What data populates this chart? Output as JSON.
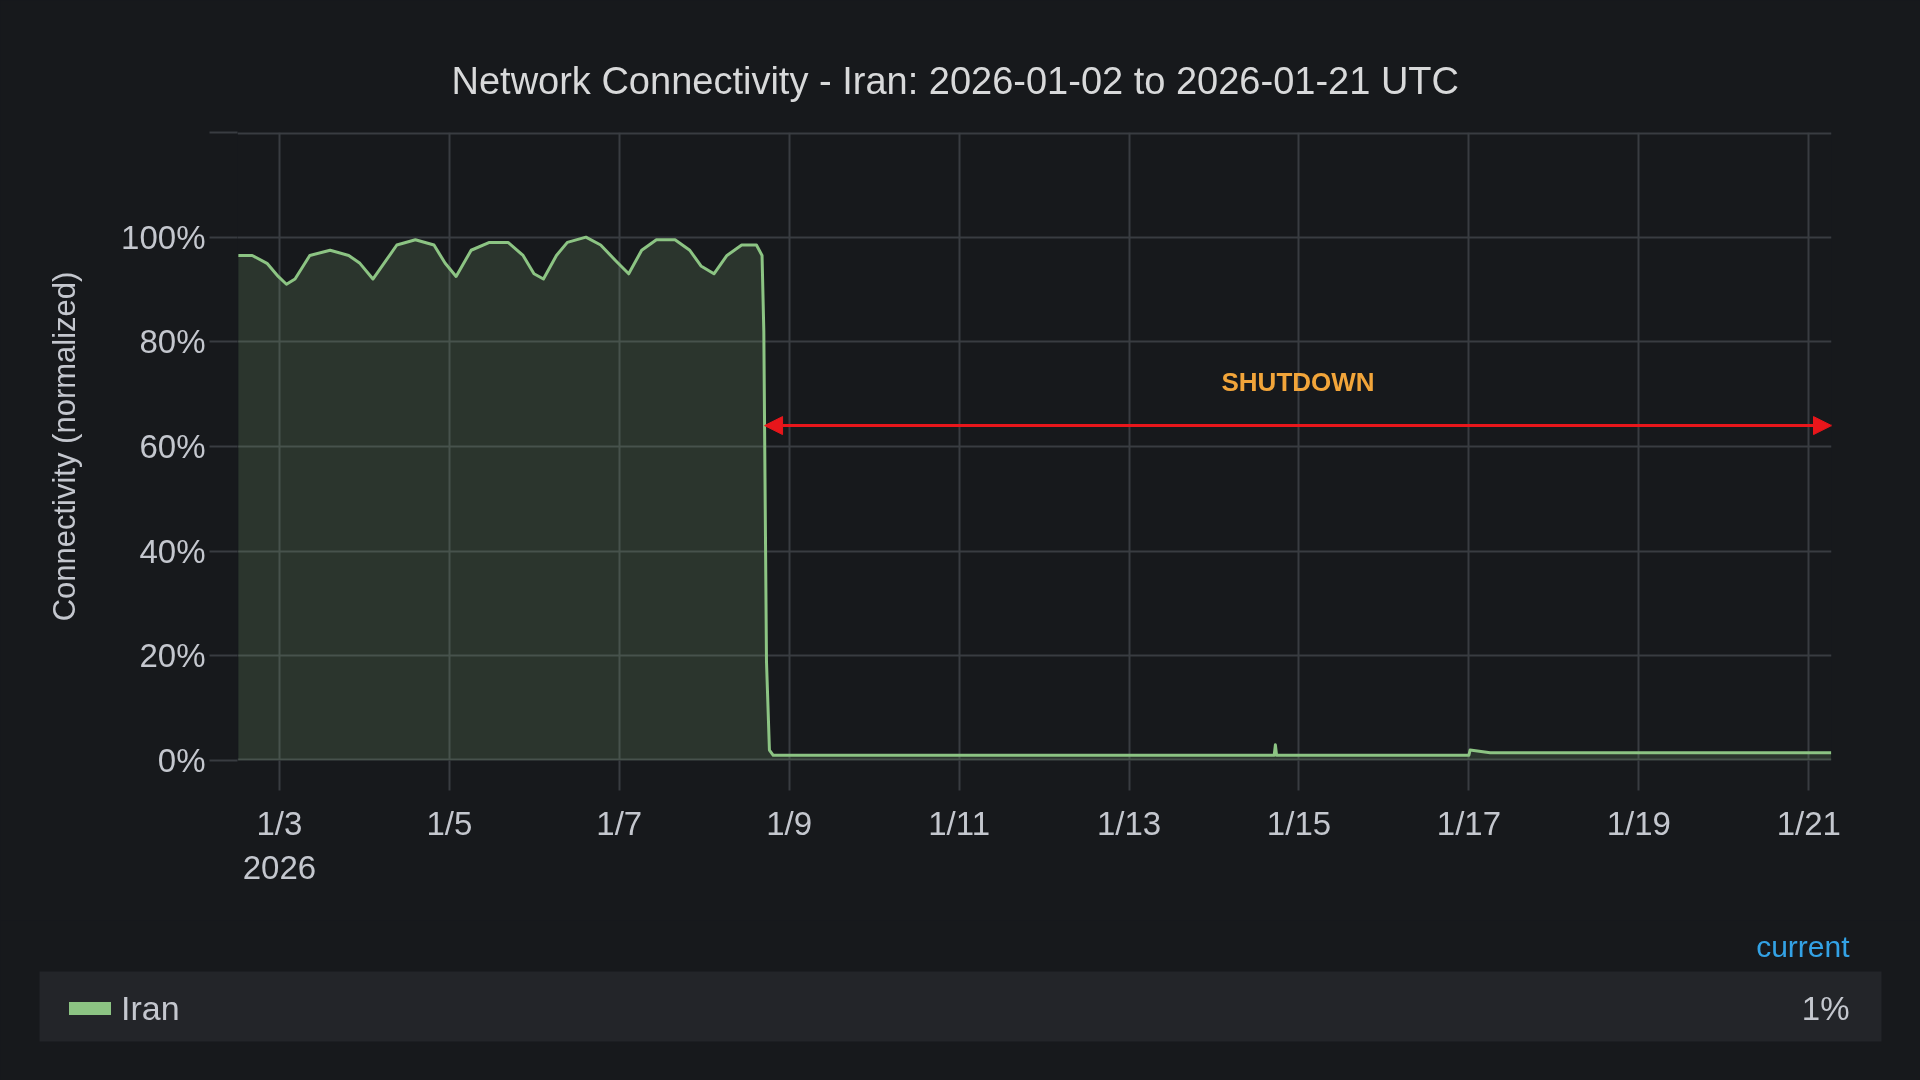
{
  "chart_data": {
    "type": "area",
    "title": "Network Connectivity - Iran: 2026-01-02 to 2026-01-21 UTC",
    "ylabel": "Connectivity (normalized)",
    "x": [
      "2026-01-02T12:25",
      "2026-01-02T16:20",
      "2026-01-02T20:30",
      "2026-01-02T23:40",
      "2026-01-03T02:00",
      "2026-01-03T04:25",
      "2026-01-03T08:35",
      "2026-01-03T14:20",
      "2026-01-03T19:35",
      "2026-01-03T22:45",
      "2026-01-04T02:25",
      "2026-01-04T06:05",
      "2026-01-04T09:10",
      "2026-01-04T14:25",
      "2026-01-04T19:40",
      "2026-01-04T22:50",
      "2026-01-05T01:55",
      "2026-01-05T06:10",
      "2026-01-05T11:20",
      "2026-01-05T16:35",
      "2026-01-05T20:50",
      "2026-01-05T23:55",
      "2026-01-06T02:35",
      "2026-01-06T06:15",
      "2026-01-06T09:20",
      "2026-01-06T14:35",
      "2026-01-06T18:45",
      "2026-01-06T23:00",
      "2026-01-07T02:40",
      "2026-01-07T06:20",
      "2026-01-07T10:30",
      "2026-01-07T15:45",
      "2026-01-07T19:55",
      "2026-01-07T23:05",
      "2026-01-08T02:45",
      "2026-01-08T06:25",
      "2026-01-08T10:35",
      "2026-01-08T14:45",
      "2026-01-08T16:20",
      "2026-01-08T16:50",
      "2026-01-08T17:10",
      "2026-01-08T17:35",
      "2026-01-08T18:25",
      "2026-01-08T19:30",
      "2026-01-09T16:00",
      "2026-01-14T17:00",
      "2026-01-14T17:20",
      "2026-01-14T17:40",
      "2026-01-17T00:00",
      "2026-01-17T00:20",
      "2026-01-17T06:00",
      "2026-01-19T06:45",
      "2026-01-19T20:40",
      "2026-01-21T06:20"
    ],
    "series": [
      {
        "name": "Iran",
        "color": "#8cc483",
        "values": [
          96.5,
          96.5,
          95,
          92.5,
          91,
          92,
          96.5,
          97.5,
          96.5,
          95,
          92,
          95.5,
          98.5,
          99.5,
          98.5,
          95,
          92.5,
          97.5,
          99,
          99,
          96.5,
          93,
          92,
          96.5,
          99,
          100,
          98.5,
          95.5,
          93,
          97.5,
          99.5,
          99.5,
          97.5,
          94.5,
          93,
          96.5,
          98.5,
          98.5,
          96.5,
          82,
          54,
          19,
          2,
          1,
          1,
          1,
          3,
          1,
          1,
          2,
          1.5,
          1.5,
          1.5,
          1.5
        ]
      }
    ],
    "xlim": [
      "2026-01-02T12:10",
      "2026-01-21T06:25"
    ],
    "xticks": [
      {
        "value": "2026-01-03",
        "label": "1/3\n2026"
      },
      {
        "value": "2026-01-05",
        "label": "1/5"
      },
      {
        "value": "2026-01-07",
        "label": "1/7"
      },
      {
        "value": "2026-01-09",
        "label": "1/9"
      },
      {
        "value": "2026-01-11",
        "label": "1/11"
      },
      {
        "value": "2026-01-13",
        "label": "1/13"
      },
      {
        "value": "2026-01-15",
        "label": "1/15"
      },
      {
        "value": "2026-01-17",
        "label": "1/17"
      },
      {
        "value": "2026-01-19",
        "label": "1/19"
      },
      {
        "value": "2026-01-21",
        "label": "1/21"
      }
    ],
    "ylim": [
      0,
      120
    ],
    "yticks": [
      {
        "value": 0,
        "label": "0%"
      },
      {
        "value": 20,
        "label": "20%"
      },
      {
        "value": 40,
        "label": "40%"
      },
      {
        "value": 60,
        "label": "60%"
      },
      {
        "value": 80,
        "label": "80%"
      },
      {
        "value": 100,
        "label": "100%"
      },
      {
        "value": 120,
        "label": null
      }
    ],
    "grid": true,
    "legend": "bottom",
    "annotations": [
      "SHUTDOWN",
      "current",
      "1%"
    ]
  }
}
